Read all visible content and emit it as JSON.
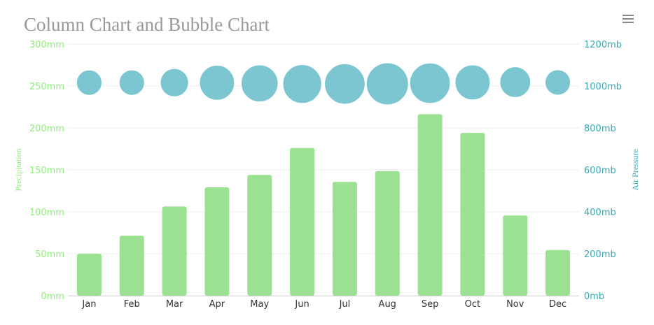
{
  "colors": {
    "precipitation": "#9be192",
    "pressure": "#6dc0cc",
    "left_axis_text": "#90ed7d",
    "right_axis_text": "#39a9b4",
    "grid": "#eeeeee"
  },
  "toolbar": {
    "menu_icon": "hamburger-menu-icon"
  },
  "chart_data": {
    "type": "bar+bubble",
    "title": "Column Chart and Bubble Chart",
    "categories": [
      "Jan",
      "Feb",
      "Mar",
      "Apr",
      "May",
      "Jun",
      "Jul",
      "Aug",
      "Sep",
      "Oct",
      "Nov",
      "Dec"
    ],
    "series": [
      {
        "name": "Precipitation",
        "type": "bar",
        "axis": "left",
        "values": [
          49.9,
          71.5,
          106.4,
          129.2,
          144.0,
          176.0,
          135.6,
          148.5,
          216.4,
          194.1,
          95.6,
          54.4
        ]
      },
      {
        "name": "Air Pressure",
        "type": "bubble",
        "axis": "right",
        "values": [
          1016,
          1016,
          1015.9,
          1015.5,
          1012.3,
          1009.5,
          1009.6,
          1010.2,
          1013.1,
          1016.9,
          1018.2,
          1016.7
        ],
        "sizes": [
          3,
          3,
          4,
          7,
          8,
          9,
          10,
          11,
          10,
          7,
          5,
          3
        ]
      }
    ],
    "y_left": {
      "label": "Precipitation",
      "range": [
        0,
        300
      ],
      "ticks": [
        0,
        50,
        100,
        150,
        200,
        250,
        300
      ],
      "tick_labels": [
        "0mm",
        "50mm",
        "100mm",
        "150mm",
        "200mm",
        "250mm",
        "300mm"
      ]
    },
    "y_right": {
      "label": "Air Pressure",
      "range": [
        0,
        1200
      ],
      "ticks": [
        0,
        200,
        400,
        600,
        800,
        1000,
        1200
      ],
      "tick_labels": [
        "0mb",
        "200mb",
        "400mb",
        "600mb",
        "800mb",
        "1000mb",
        "1200mb"
      ]
    },
    "grid": true,
    "legend": "none"
  }
}
